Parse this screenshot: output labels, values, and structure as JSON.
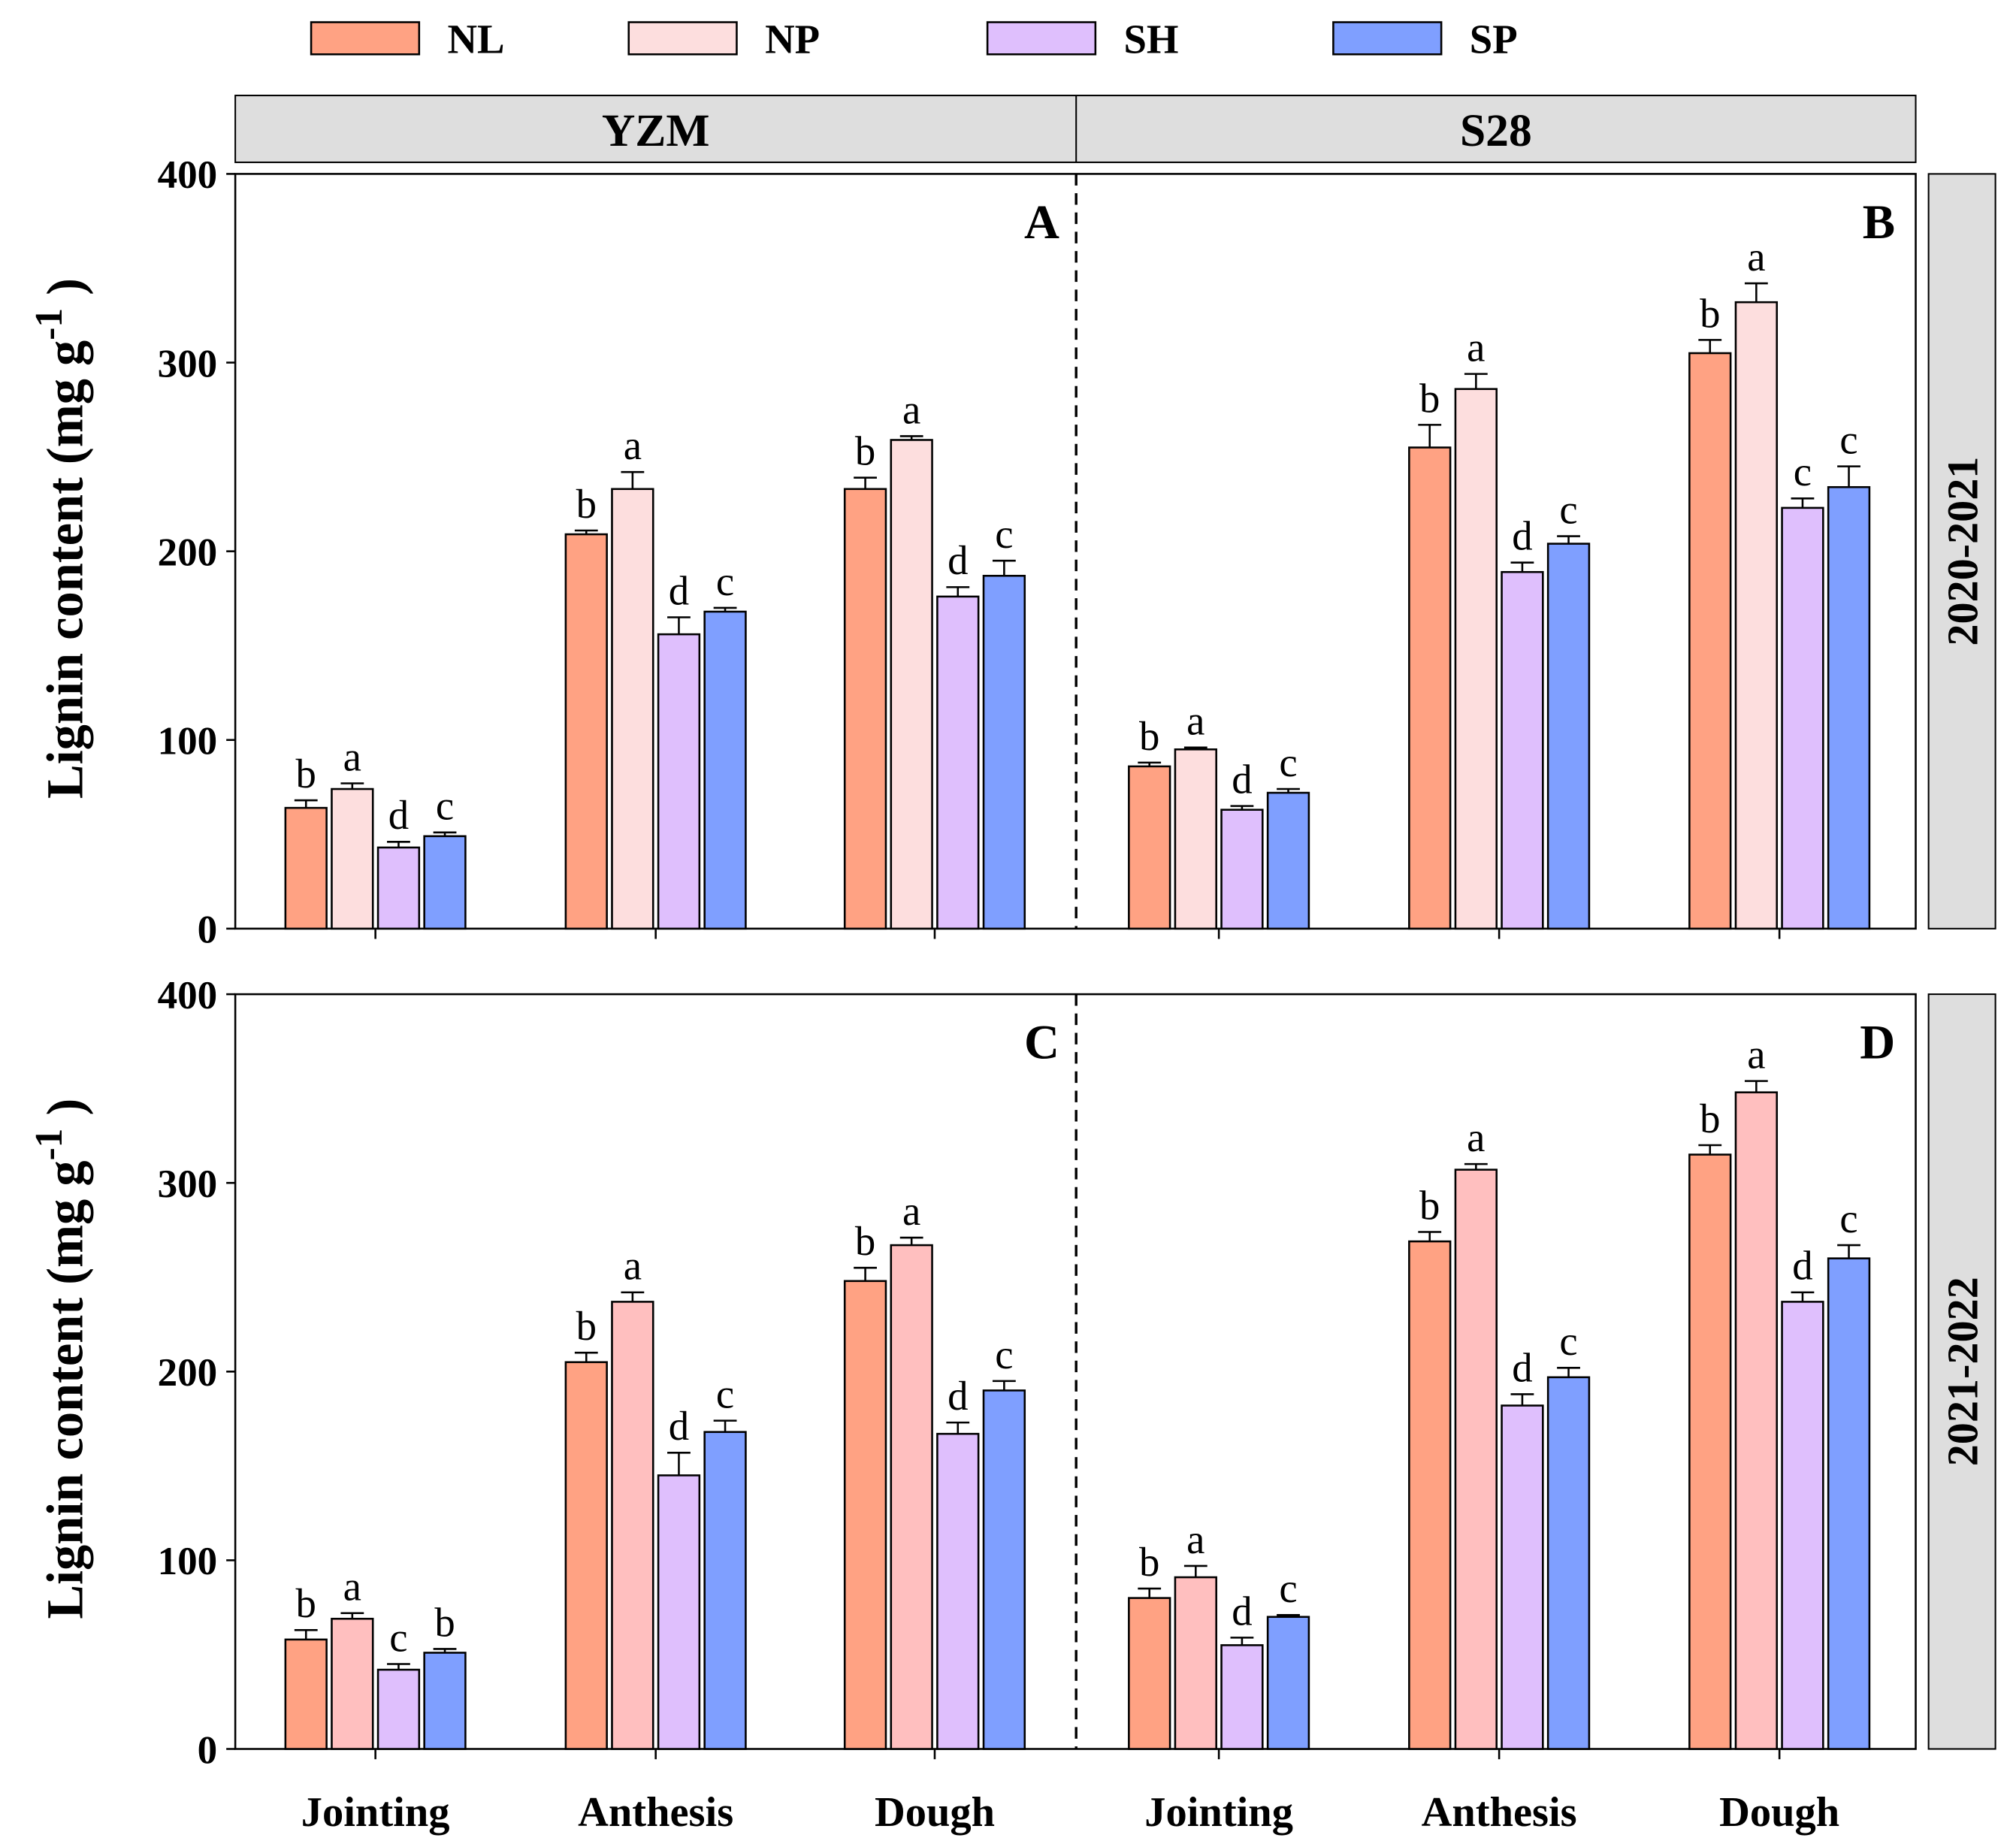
{
  "chart_data": {
    "type": "bar",
    "ylabel": "Lignin content (mg g",
    "ylabel_sup": "-1",
    "ylabel_close": ")",
    "ylim": [
      0,
      400
    ],
    "yticks": [
      "0",
      "100",
      "200",
      "300",
      "400"
    ],
    "categories": [
      "Jointing",
      "Anthesis",
      "Dough"
    ],
    "legend": [
      {
        "name": "NL",
        "color": "#FFA283"
      },
      {
        "name": "NP",
        "color": "#FDDEDE"
      },
      {
        "name": "SH",
        "color": "#DFBFFD"
      },
      {
        "name": "SP",
        "color": "#7F9FFF"
      }
    ],
    "legend_placement": "top",
    "cultivars": [
      "YZM",
      "S28"
    ],
    "years": [
      "2020-2021",
      "2021-2022"
    ],
    "np_color_second_year": "#FFBFBF",
    "panels": [
      {
        "label": "A",
        "cultivar": "YZM",
        "year": "2020-2021",
        "values": [
          [
            64,
            74,
            43,
            49
          ],
          [
            209,
            233,
            156,
            168
          ],
          [
            233,
            259,
            176,
            187
          ]
        ],
        "errors": [
          [
            4,
            3,
            3,
            2
          ],
          [
            2,
            9,
            9,
            2
          ],
          [
            6,
            2,
            5,
            8
          ]
        ],
        "letters": [
          [
            "b",
            "a",
            "d",
            "c"
          ],
          [
            "b",
            "a",
            "d",
            "c"
          ],
          [
            "b",
            "a",
            "d",
            "c"
          ]
        ]
      },
      {
        "label": "B",
        "cultivar": "S28",
        "year": "2020-2021",
        "values": [
          [
            86,
            95,
            63,
            72
          ],
          [
            255,
            286,
            189,
            204
          ],
          [
            305,
            332,
            223,
            234
          ]
        ],
        "errors": [
          [
            2,
            1,
            2,
            2
          ],
          [
            12,
            8,
            5,
            4
          ],
          [
            7,
            10,
            5,
            11
          ]
        ],
        "letters": [
          [
            "b",
            "a",
            "d",
            "c"
          ],
          [
            "b",
            "a",
            "d",
            "c"
          ],
          [
            "b",
            "a",
            "c",
            "c"
          ]
        ]
      },
      {
        "label": "C",
        "cultivar": "YZM",
        "year": "2021-2022",
        "values": [
          [
            58,
            69,
            42,
            51
          ],
          [
            205,
            237,
            145,
            168
          ],
          [
            248,
            267,
            167,
            190
          ]
        ],
        "errors": [
          [
            5,
            3,
            3,
            2
          ],
          [
            5,
            5,
            12,
            6
          ],
          [
            7,
            4,
            6,
            5
          ]
        ],
        "letters": [
          [
            "b",
            "a",
            "c",
            "b"
          ],
          [
            "b",
            "a",
            "d",
            "c"
          ],
          [
            "b",
            "a",
            "d",
            "c"
          ]
        ]
      },
      {
        "label": "D",
        "cultivar": "S28",
        "year": "2021-2022",
        "values": [
          [
            80,
            91,
            55,
            70
          ],
          [
            269,
            307,
            182,
            197
          ],
          [
            315,
            348,
            237,
            260
          ]
        ],
        "errors": [
          [
            5,
            6,
            4,
            1
          ],
          [
            5,
            3,
            6,
            5
          ],
          [
            5,
            6,
            5,
            7
          ]
        ],
        "letters": [
          [
            "b",
            "a",
            "d",
            "c"
          ],
          [
            "b",
            "a",
            "d",
            "c"
          ],
          [
            "b",
            "a",
            "d",
            "c"
          ]
        ]
      }
    ]
  }
}
